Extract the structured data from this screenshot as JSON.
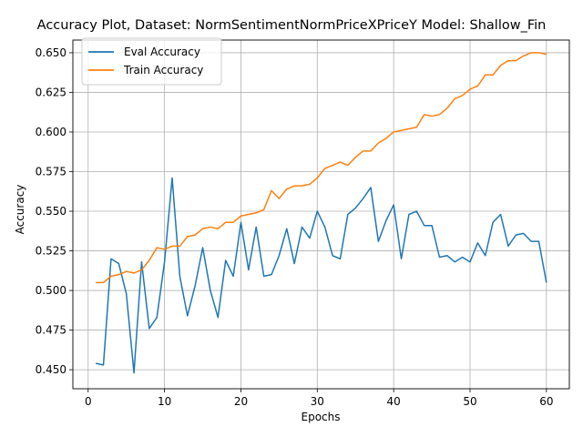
{
  "chart_data": {
    "type": "line",
    "title": "Accuracy Plot, Dataset: NormSentimentNormPriceXPriceY Model: Shallow_Fin",
    "xlabel": "Epochs",
    "ylabel": "Accuracy",
    "xlim": [
      -2,
      63
    ],
    "ylim": [
      0.438,
      0.658
    ],
    "xticks": [
      0,
      10,
      20,
      30,
      40,
      50,
      60
    ],
    "yticks": [
      0.45,
      0.475,
      0.5,
      0.525,
      0.55,
      0.575,
      0.6,
      0.625,
      0.65
    ],
    "ytick_labels": [
      "0.450",
      "0.475",
      "0.500",
      "0.525",
      "0.550",
      "0.575",
      "0.600",
      "0.625",
      "0.650"
    ],
    "grid": true,
    "legend_position": "upper left",
    "x": [
      1,
      2,
      3,
      4,
      5,
      6,
      7,
      8,
      9,
      10,
      11,
      12,
      13,
      14,
      15,
      16,
      17,
      18,
      19,
      20,
      21,
      22,
      23,
      24,
      25,
      26,
      27,
      28,
      29,
      30,
      31,
      32,
      33,
      34,
      35,
      36,
      37,
      38,
      39,
      40,
      41,
      42,
      43,
      44,
      45,
      46,
      47,
      48,
      49,
      50,
      51,
      52,
      53,
      54,
      55,
      56,
      57,
      58,
      59,
      60
    ],
    "series": [
      {
        "name": "Eval Accuracy",
        "color": "#1f77b4",
        "values": [
          0.454,
          0.453,
          0.52,
          0.517,
          0.498,
          0.448,
          0.518,
          0.476,
          0.483,
          0.518,
          0.571,
          0.509,
          0.484,
          0.503,
          0.527,
          0.5,
          0.483,
          0.519,
          0.509,
          0.543,
          0.513,
          0.54,
          0.509,
          0.51,
          0.522,
          0.539,
          0.517,
          0.54,
          0.533,
          0.55,
          0.54,
          0.522,
          0.52,
          0.548,
          0.552,
          0.558,
          0.565,
          0.531,
          0.544,
          0.554,
          0.52,
          0.548,
          0.55,
          0.541,
          0.541,
          0.521,
          0.522,
          0.518,
          0.521,
          0.518,
          0.53,
          0.522,
          0.543,
          0.548,
          0.528,
          0.535,
          0.536,
          0.531,
          0.531,
          0.505
        ]
      },
      {
        "name": "Train Accuracy",
        "color": "#ff7f0e",
        "values": [
          0.505,
          0.505,
          0.509,
          0.51,
          0.512,
          0.511,
          0.513,
          0.519,
          0.527,
          0.526,
          0.528,
          0.528,
          0.534,
          0.535,
          0.539,
          0.54,
          0.539,
          0.543,
          0.543,
          0.547,
          0.548,
          0.549,
          0.551,
          0.563,
          0.558,
          0.564,
          0.566,
          0.566,
          0.567,
          0.571,
          0.577,
          0.579,
          0.581,
          0.579,
          0.584,
          0.588,
          0.588,
          0.593,
          0.596,
          0.6,
          0.601,
          0.602,
          0.603,
          0.611,
          0.61,
          0.611,
          0.615,
          0.621,
          0.623,
          0.627,
          0.629,
          0.636,
          0.636,
          0.642,
          0.645,
          0.645,
          0.648,
          0.65,
          0.65,
          0.649
        ]
      }
    ]
  }
}
